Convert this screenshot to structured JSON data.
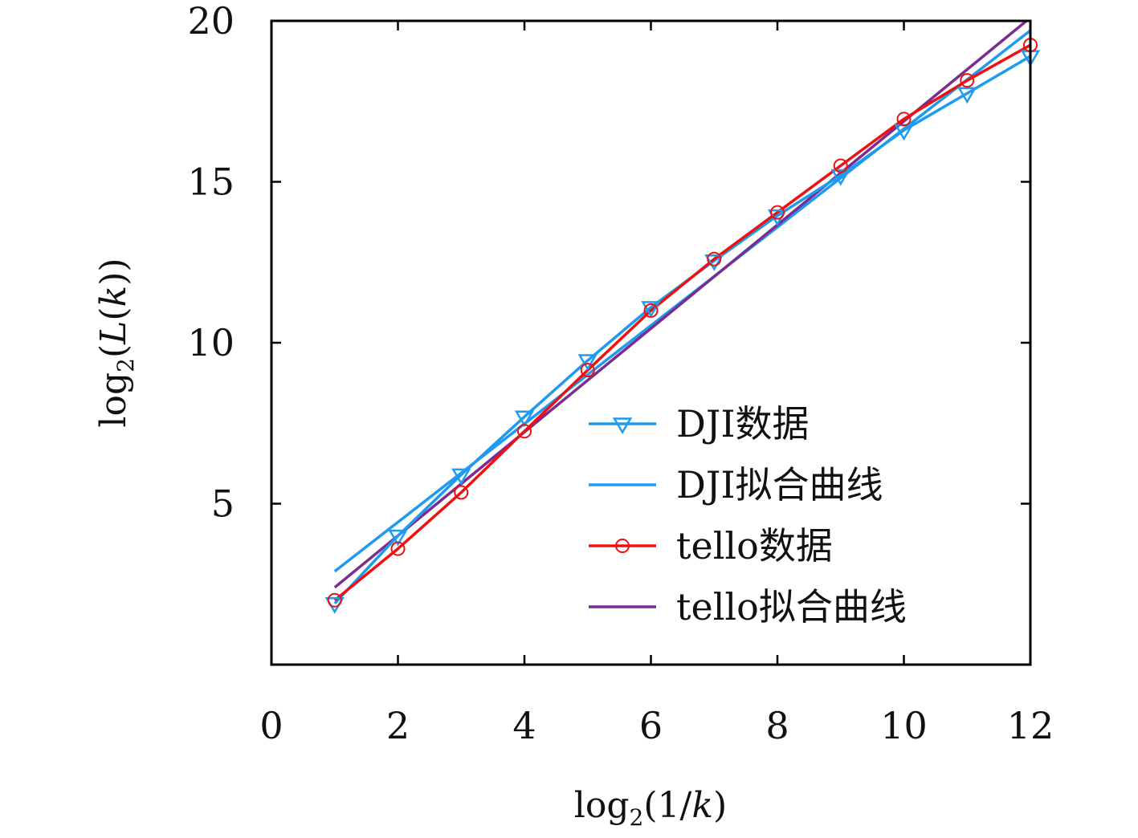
{
  "chart_data": {
    "type": "line",
    "title": "",
    "xlabel": "log2(1/k)",
    "ylabel": "log2(L(k))",
    "xlim": [
      0,
      12
    ],
    "ylim": [
      0,
      20
    ],
    "x_ticks": [
      "0",
      "2",
      "4",
      "6",
      "8",
      "10",
      "12"
    ],
    "y_ticks": [
      "5",
      "10",
      "15",
      "20"
    ],
    "x_tick_values": [
      0,
      2,
      4,
      6,
      8,
      10,
      12
    ],
    "y_tick_values": [
      5,
      10,
      15,
      20
    ],
    "legend_position": "bottom-right",
    "grid": false,
    "series": [
      {
        "name": "DJI数据",
        "color": "#1e9bf0",
        "marker": "triangle-down",
        "x": [
          1,
          2,
          3,
          4,
          5,
          6,
          7,
          8,
          9,
          10,
          11,
          12
        ],
        "y": [
          1.9,
          4.0,
          5.9,
          7.7,
          9.45,
          11.1,
          12.55,
          13.95,
          15.2,
          16.6,
          17.75,
          18.9
        ]
      },
      {
        "name": "DJI拟合曲线",
        "color": "#1e9bf0",
        "marker": "none",
        "x": [
          1,
          12
        ],
        "y": [
          2.9,
          19.7
        ]
      },
      {
        "name": "tello数据",
        "color": "#ee1111",
        "marker": "circle",
        "x": [
          1,
          2,
          3,
          4,
          5,
          6,
          7,
          8,
          9,
          10,
          11,
          12
        ],
        "y": [
          2.0,
          3.6,
          5.35,
          7.25,
          9.15,
          11.0,
          12.6,
          14.05,
          15.5,
          16.95,
          18.15,
          19.25
        ]
      },
      {
        "name": "tello拟合曲线",
        "color": "#7b2c8e",
        "marker": "none",
        "x": [
          1,
          12
        ],
        "y": [
          2.4,
          20.1
        ]
      }
    ]
  }
}
